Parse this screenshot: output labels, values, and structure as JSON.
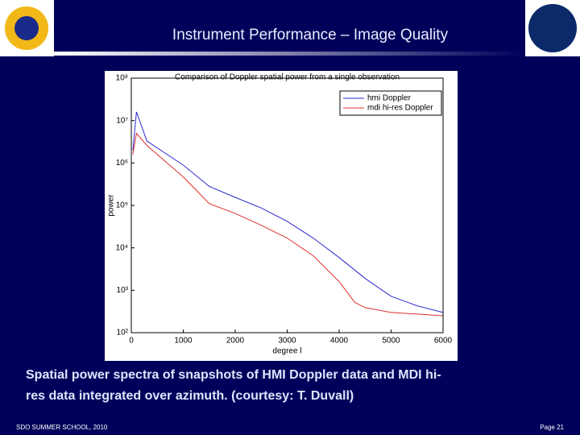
{
  "slide": {
    "title": "Instrument Performance – Image Quality",
    "caption": [
      "Spatial power spectra of snapshots of HMI Doppler data and MDI hi-",
      "res data integrated over azimuth. (courtesy: T. Duvall)"
    ],
    "footer_left": "SDO SUMMER SCHOOL, 2010",
    "footer_right": "Page 21"
  },
  "chart_data": {
    "type": "line",
    "title": "Comparison of Doppler spatial power from a single observation",
    "xlabel": "degree l",
    "ylabel": "power",
    "x": [
      30,
      100,
      300,
      1000,
      1500,
      2000,
      2500,
      3000,
      3500,
      4000,
      4300,
      4500,
      5000,
      5500,
      6000
    ],
    "series": [
      {
        "name": "hmi Doppler",
        "color": "#2a2ad0",
        "values": [
          2000000,
          16000000,
          3300000,
          890000,
          280000,
          155000,
          87000,
          42000,
          17000,
          5900,
          3000,
          1900,
          720,
          430,
          300
        ]
      },
      {
        "name": "mdi hi-res Doppler",
        "color": "#e03030",
        "values": [
          1600000,
          5000000,
          2600000,
          470000,
          110000,
          65000,
          34000,
          17000,
          6500,
          1600,
          520,
          390,
          300,
          275,
          250
        ]
      }
    ],
    "xlim": [
      0,
      6000
    ],
    "xticks": [
      0,
      1000,
      2000,
      3000,
      4000,
      5000,
      6000
    ],
    "ylim": [
      100,
      100000000
    ],
    "ylog": true,
    "yticks": [
      {
        "value": 100,
        "label": "10²"
      },
      {
        "value": 1000,
        "label": "10³"
      },
      {
        "value": 10000,
        "label": "10⁴"
      },
      {
        "value": 100000,
        "label": "10⁵"
      },
      {
        "value": 1000000,
        "label": "10⁶"
      },
      {
        "value": 10000000,
        "label": "10⁷"
      },
      {
        "value": 100000000,
        "label": "10⁸"
      }
    ],
    "legend": "upper right"
  }
}
